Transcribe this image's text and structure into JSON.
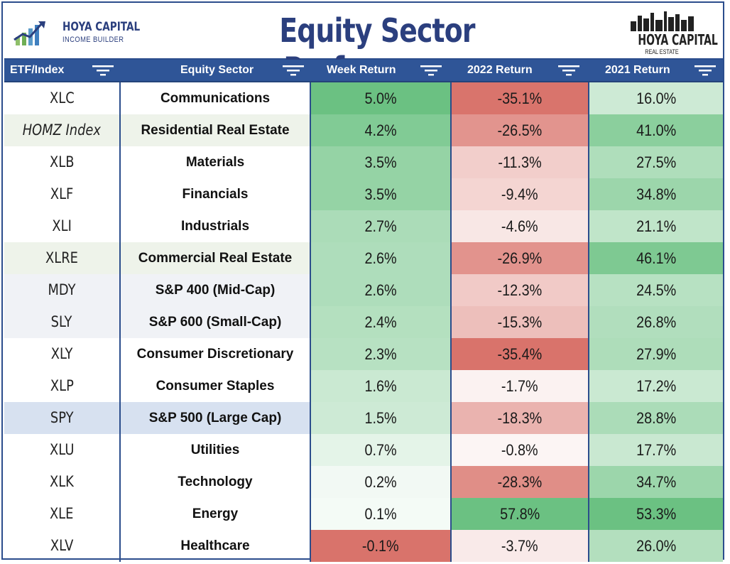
{
  "title": "Equity Sector Performance",
  "logo_left": {
    "line1": "HOYA CAPITAL",
    "line2": "INCOME BUILDER"
  },
  "logo_right": {
    "line1": "HOYA CAPITAL",
    "line2": "REAL ESTATE"
  },
  "headers": [
    "ETF/Index",
    "Equity Sector",
    "Week Return",
    "2022 Return",
    "2021 Return"
  ],
  "colors": {
    "header_bg": "#2f5597",
    "title": "#2b3f7e",
    "positive": "#63be7b",
    "negative": "#d9736b"
  },
  "chart_data": {
    "type": "table",
    "title": "Equity Sector Performance",
    "columns": [
      "ETF/Index",
      "Equity Sector",
      "Week Return",
      "2022 Return",
      "2021 Return"
    ],
    "rows": [
      {
        "ticker": "XLC",
        "sector": "Communications",
        "week": 5.0,
        "y2022": -35.1,
        "y2021": 16.0,
        "week_label": "5.0%",
        "y2022_label": "-35.1%",
        "y2021_label": "16.0%",
        "italic": false
      },
      {
        "ticker": "HOMZ Index",
        "sector": "Residential Real Estate",
        "week": 4.2,
        "y2022": -26.5,
        "y2021": 41.0,
        "week_label": "4.2%",
        "y2022_label": "-26.5%",
        "y2021_label": "41.0%",
        "italic": true
      },
      {
        "ticker": "XLB",
        "sector": "Materials",
        "week": 3.5,
        "y2022": -11.3,
        "y2021": 27.5,
        "week_label": "3.5%",
        "y2022_label": "-11.3%",
        "y2021_label": "27.5%",
        "italic": false
      },
      {
        "ticker": "XLF",
        "sector": "Financials",
        "week": 3.5,
        "y2022": -9.4,
        "y2021": 34.8,
        "week_label": "3.5%",
        "y2022_label": "-9.4%",
        "y2021_label": "34.8%",
        "italic": false
      },
      {
        "ticker": "XLI",
        "sector": "Industrials",
        "week": 2.7,
        "y2022": -4.6,
        "y2021": 21.1,
        "week_label": "2.7%",
        "y2022_label": "-4.6%",
        "y2021_label": "21.1%",
        "italic": false
      },
      {
        "ticker": "XLRE",
        "sector": "Commercial Real Estate",
        "week": 2.6,
        "y2022": -26.9,
        "y2021": 46.1,
        "week_label": "2.6%",
        "y2022_label": "-26.9%",
        "y2021_label": "46.1%",
        "italic": false
      },
      {
        "ticker": "MDY",
        "sector": "S&P 400 (Mid-Cap)",
        "week": 2.6,
        "y2022": -12.3,
        "y2021": 24.5,
        "week_label": "2.6%",
        "y2022_label": "-12.3%",
        "y2021_label": "24.5%",
        "italic": false
      },
      {
        "ticker": "SLY",
        "sector": "S&P 600 (Small-Cap)",
        "week": 2.4,
        "y2022": -15.3,
        "y2021": 26.8,
        "week_label": "2.4%",
        "y2022_label": "-15.3%",
        "y2021_label": "26.8%",
        "italic": false
      },
      {
        "ticker": "XLY",
        "sector": "Consumer Discretionary",
        "week": 2.3,
        "y2022": -35.4,
        "y2021": 27.9,
        "week_label": "2.3%",
        "y2022_label": "-35.4%",
        "y2021_label": "27.9%",
        "italic": false
      },
      {
        "ticker": "XLP",
        "sector": "Consumer Staples",
        "week": 1.6,
        "y2022": -1.7,
        "y2021": 17.2,
        "week_label": "1.6%",
        "y2022_label": "-1.7%",
        "y2021_label": "17.2%",
        "italic": false
      },
      {
        "ticker": "SPY",
        "sector": "S&P 500 (Large Cap)",
        "week": 1.5,
        "y2022": -18.3,
        "y2021": 28.8,
        "week_label": "1.5%",
        "y2022_label": "-18.3%",
        "y2021_label": "28.8%",
        "italic": false
      },
      {
        "ticker": "XLU",
        "sector": "Utilities",
        "week": 0.7,
        "y2022": -0.8,
        "y2021": 17.7,
        "week_label": "0.7%",
        "y2022_label": "-0.8%",
        "y2021_label": "17.7%",
        "italic": false
      },
      {
        "ticker": "XLK",
        "sector": "Technology",
        "week": 0.2,
        "y2022": -28.3,
        "y2021": 34.7,
        "week_label": "0.2%",
        "y2022_label": "-28.3%",
        "y2021_label": "34.7%",
        "italic": false
      },
      {
        "ticker": "XLE",
        "sector": "Energy",
        "week": 0.1,
        "y2022": 57.8,
        "y2021": 53.3,
        "week_label": "0.1%",
        "y2022_label": "57.8%",
        "y2021_label": "53.3%",
        "italic": false
      },
      {
        "ticker": "XLV",
        "sector": "Healthcare",
        "week": -0.1,
        "y2022": -3.7,
        "y2021": 26.0,
        "week_label": "-0.1%",
        "y2022_label": "-3.7%",
        "y2021_label": "26.0%",
        "italic": false
      }
    ],
    "row_highlights": {
      "HOMZ Index": "#eef3ea",
      "XLRE": "#eef3ea",
      "MDY": "#f0f2f6",
      "SLY": "#f0f2f6",
      "SPY": "#d7e1f0"
    }
  }
}
